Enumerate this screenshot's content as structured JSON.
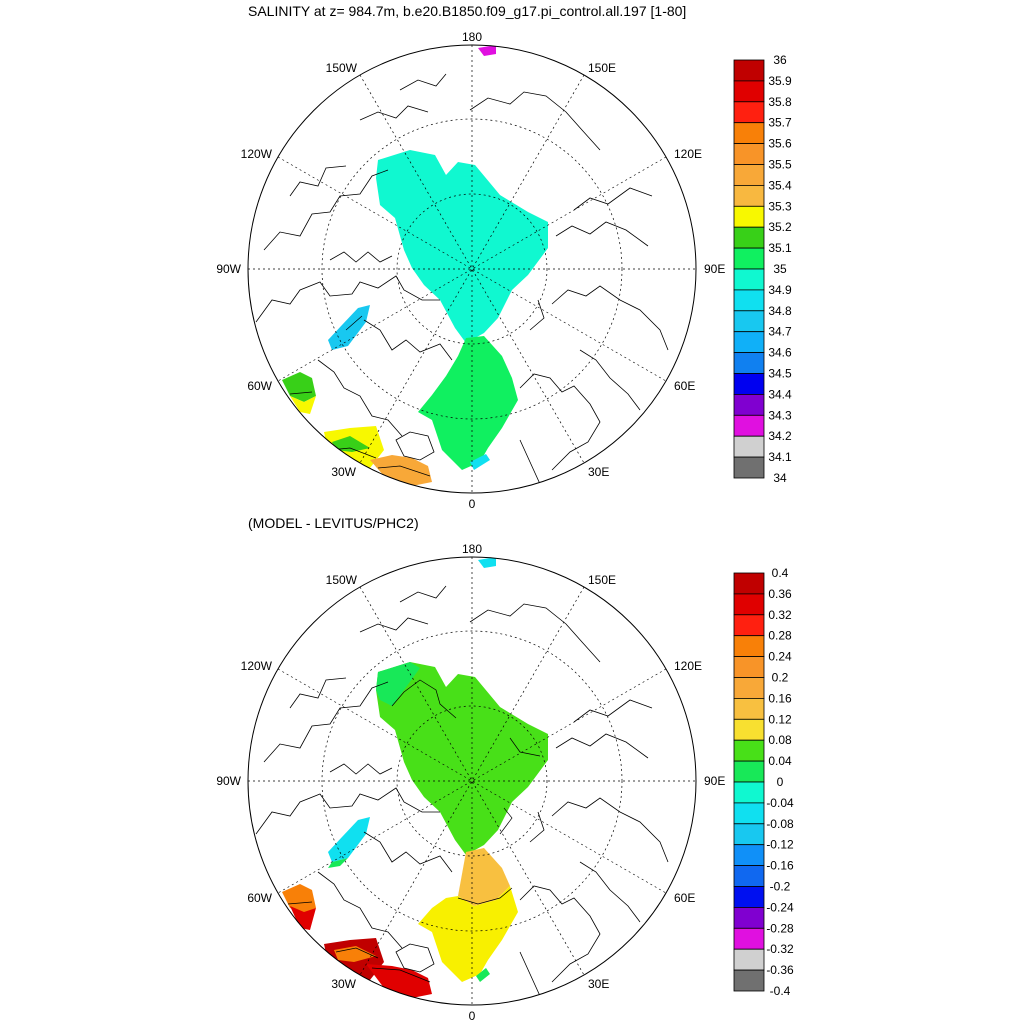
{
  "figure": {
    "title": "SALINITY at z= 984.7m, b.e20.B1850.f09_g17.pi_control.all.197 [1-80]",
    "subtitle": "(MODEL - LEVITUS/PHC2)"
  },
  "map_labels": {
    "top": "180",
    "bottom": "0",
    "left": "90W",
    "right": "90E",
    "nw1": "150W",
    "nw2": "120W",
    "ne1": "150E",
    "ne2": "120E",
    "sw1": "60W",
    "sw2": "30W",
    "se1": "60E",
    "se2": "30E"
  },
  "colorbar_top": {
    "labels": [
      "36",
      "35.9",
      "35.8",
      "35.7",
      "35.6",
      "35.5",
      "35.4",
      "35.3",
      "35.2",
      "35.1",
      "35",
      "34.9",
      "34.8",
      "34.7",
      "34.6",
      "34.5",
      "34.4",
      "34.3",
      "34.2",
      "34.1",
      "34"
    ],
    "colors": [
      "#c00000",
      "#e00000",
      "#ff2010",
      "#f88008",
      "#f89428",
      "#f8a838",
      "#f8b840",
      "#f8f800",
      "#38d018",
      "#10f060",
      "#10f8d0",
      "#10e0f0",
      "#18c8f0",
      "#10b0f8",
      "#1080f0",
      "#0000f0",
      "#8000d0",
      "#e010e0",
      "#d0d0d0",
      "#707070"
    ]
  },
  "colorbar_bottom": {
    "labels": [
      "0.4",
      "0.36",
      "0.32",
      "0.28",
      "0.24",
      "0.2",
      "0.16",
      "0.12",
      "0.08",
      "0.04",
      "0",
      "-0.04",
      "-0.08",
      "-0.12",
      "-0.16",
      "-0.2",
      "-0.24",
      "-0.28",
      "-0.32",
      "-0.36",
      "-0.4"
    ],
    "colors": [
      "#c00000",
      "#e00000",
      "#ff2010",
      "#f88008",
      "#f89428",
      "#f8a838",
      "#f8c040",
      "#f8e030",
      "#48e018",
      "#18e858",
      "#10f8d0",
      "#10e0f0",
      "#18c8f0",
      "#1090f8",
      "#1068f0",
      "#0010f0",
      "#8000d0",
      "#e010e0",
      "#d0d0d0",
      "#707070"
    ]
  },
  "field_colors": {
    "top": {
      "arctic": "#10f8d0",
      "nordic": "#10f060",
      "baffin": "#18c8f0",
      "labrador_a": "#38d018",
      "labrador_b": "#f8f800",
      "atlantic_a": "#f8f800",
      "atlantic_b": "#38d018",
      "atlantic_c": "#f8a838",
      "cap": "#e010e0",
      "barents_sliver": "#10e0f0"
    },
    "bottom": {
      "arctic": "#48e018",
      "arctic_edge": "#18e858",
      "nordic": "#f8f000",
      "nordic_north": "#f8c040",
      "baffin": "#10e0f0",
      "baffin_b": "#18e858",
      "labrador_a": "#f88008",
      "labrador_b": "#e00000",
      "atlantic_a": "#c00000",
      "atlantic_b": "#f88008",
      "atlantic_c": "#e00000",
      "cap": "#10e0f0",
      "barents_sliver": "#18e858"
    }
  }
}
